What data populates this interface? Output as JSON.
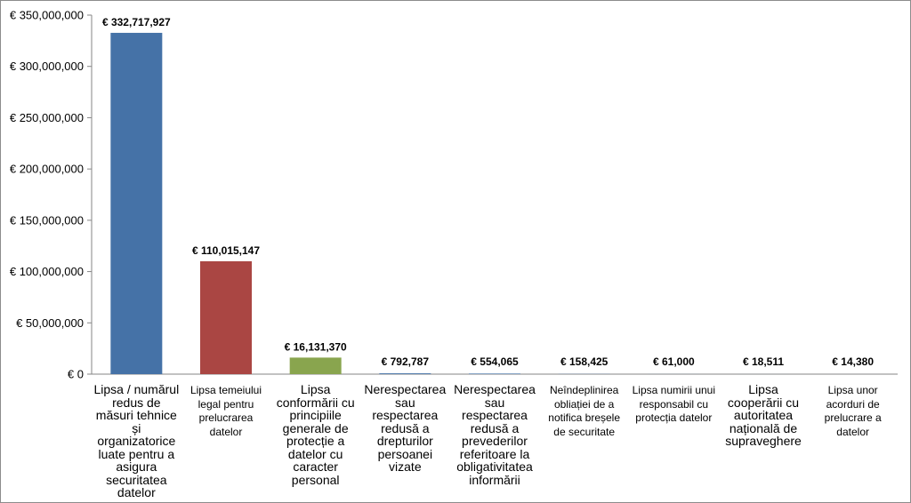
{
  "chart_data": {
    "type": "bar",
    "title": "",
    "xlabel": "",
    "ylabel": "",
    "ylim": [
      0,
      350000000
    ],
    "y_ticks": [
      {
        "value": 0,
        "label": "€ 0"
      },
      {
        "value": 50000000,
        "label": "€ 50,000,000"
      },
      {
        "value": 100000000,
        "label": "€ 100,000,000"
      },
      {
        "value": 150000000,
        "label": "€ 150,000,000"
      },
      {
        "value": 200000000,
        "label": "€ 200,000,000"
      },
      {
        "value": 250000000,
        "label": "€ 250,000,000"
      },
      {
        "value": 300000000,
        "label": "€ 300,000,000"
      },
      {
        "value": 350000000,
        "label": "€ 350,000,000"
      }
    ],
    "grid": false,
    "legend": "none",
    "categories": [
      "Lipsa / numărul redus de măsuri tehnice și organizatorice luate pentru a asigura securitatea datelor",
      "Lipsa temeiului legal pentru prelucrarea datelor",
      "Lipsa conformării cu principiile generale de protecție a datelor cu caracter personal",
      "Nerespectarea sau respectarea redusă a drepturilor persoanei vizate",
      "Nerespectarea sau respectarea redusă a prevederilor referitoare la obligativitatea informării",
      "Neîndeplinirea obliației de a notifica breșele de securitate",
      "Lipsa numirii unui responsabil cu protecția datelor",
      "Lipsa cooperării cu autoritatea națională de supraveghere",
      "Lipsa unor acorduri de prelucrare a datelor"
    ],
    "values": [
      332717927,
      110015147,
      16131370,
      792787,
      554065,
      158425,
      61000,
      18511,
      14380
    ],
    "value_labels": [
      "€ 332,717,927",
      "€ 110,015,147",
      "€ 16,131,370",
      "€ 792,787",
      "€ 554,065",
      "€ 158,425",
      "€ 61,000",
      "€ 18,511",
      "€ 14,380"
    ],
    "bar_colors": [
      "#4572a7",
      "#aa4643",
      "#89a54e",
      "#4572a7",
      "#4572a7",
      "#4572a7",
      "#4572a7",
      "#4572a7",
      "#4572a7"
    ],
    "category_label_style": [
      "large",
      "small",
      "large",
      "large",
      "large",
      "small",
      "small",
      "large",
      "small"
    ]
  }
}
